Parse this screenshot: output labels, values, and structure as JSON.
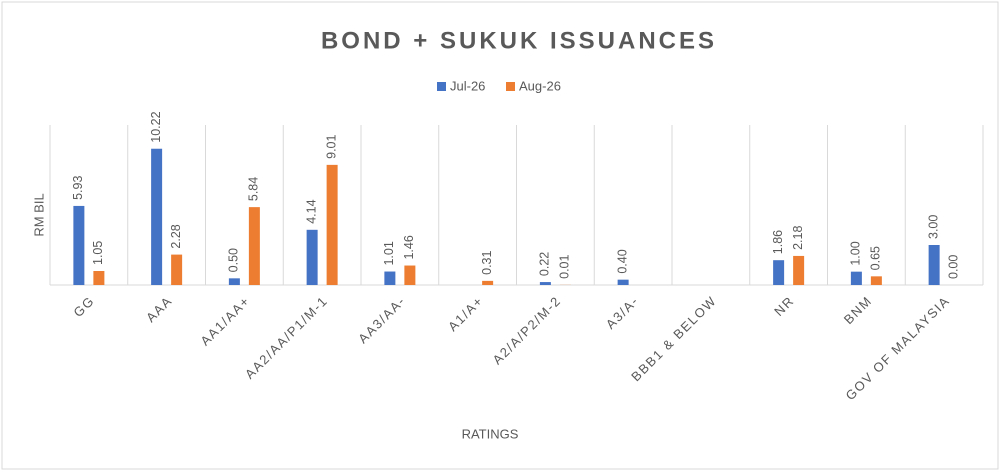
{
  "chart_data": {
    "type": "bar",
    "title": "BOND + SUKUK ISSUANCES",
    "x_label": "RATINGS",
    "y_label": "RM BIL",
    "categories": [
      "GG",
      "AAA",
      "AA1/AA+",
      "AA2/AA/P1/M-1",
      "AA3/AA-",
      "A1/A+",
      "A2/A/P2/M-2",
      "A3/A-",
      "BBB1 & BELOW",
      "NR",
      "BNM",
      "GOV OF MALAYSIA"
    ],
    "series": [
      {
        "name": "Jul-26",
        "color": "#4472c4",
        "values": [
          5.93,
          10.22,
          0.5,
          4.14,
          1.01,
          null,
          0.22,
          0.4,
          null,
          1.86,
          1.0,
          3.0
        ],
        "value_labels": [
          "5.93",
          "10.22",
          "0.50",
          "4.14",
          "1.01",
          null,
          "0.22",
          "0.40",
          null,
          "1.86",
          "1.00",
          "3.00"
        ]
      },
      {
        "name": "Aug-26",
        "color": "#ed7d31",
        "values": [
          1.05,
          2.28,
          5.84,
          9.01,
          1.46,
          0.31,
          0.01,
          null,
          null,
          2.18,
          0.65,
          0.0
        ],
        "value_labels": [
          "1.05",
          "2.28",
          "5.84",
          "9.01",
          "1.46",
          "0.31",
          "0.01",
          null,
          null,
          "2.18",
          "0.65",
          "0.00"
        ]
      }
    ],
    "ylim": [
      0,
      12
    ],
    "legend": "top"
  }
}
